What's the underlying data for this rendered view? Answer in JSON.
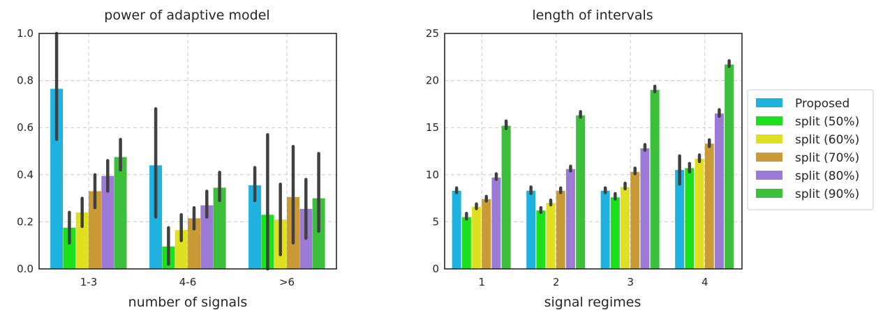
{
  "series_names": [
    "Proposed",
    "split (50%)",
    "split (60%)",
    "split (70%)",
    "split (80%)",
    "split (90%)"
  ],
  "colors": [
    "#20b2de",
    "#1de01d",
    "#e0e020",
    "#c99a35",
    "#9b7bd6",
    "#3cc03c"
  ],
  "error_bar_color": "#404040",
  "legend_placement": "right, outside, vertically centered",
  "chart_data": [
    {
      "type": "bar",
      "title": "power of adaptive model",
      "xlabel": "number of signals",
      "ylabel": "",
      "categories": [
        "1-3",
        "4-6",
        ">6"
      ],
      "ylim": [
        0,
        1.0
      ],
      "yticks": [
        0.0,
        0.2,
        0.4,
        0.6,
        0.8,
        1.0
      ],
      "ytick_labels": [
        "0.0",
        "0.2",
        "0.4",
        "0.6",
        "0.8",
        "1.0"
      ],
      "grid": true,
      "series": [
        {
          "name": "Proposed",
          "values": [
            0.765,
            0.44,
            0.355
          ],
          "ci": [
            [
              0.55,
              1.0
            ],
            [
              0.22,
              0.68
            ],
            [
              0.29,
              0.43
            ]
          ]
        },
        {
          "name": "split (50%)",
          "values": [
            0.175,
            0.095,
            0.23
          ],
          "ci": [
            [
              0.11,
              0.24
            ],
            [
              0.02,
              0.175
            ],
            [
              0.0,
              0.57
            ]
          ]
        },
        {
          "name": "split (60%)",
          "values": [
            0.24,
            0.165,
            0.21
          ],
          "ci": [
            [
              0.18,
              0.3
            ],
            [
              0.12,
              0.23
            ],
            [
              0.06,
              0.36
            ]
          ]
        },
        {
          "name": "split (70%)",
          "values": [
            0.33,
            0.215,
            0.305
          ],
          "ci": [
            [
              0.26,
              0.4
            ],
            [
              0.17,
              0.26
            ],
            [
              0.11,
              0.52
            ]
          ]
        },
        {
          "name": "split (80%)",
          "values": [
            0.395,
            0.27,
            0.255
          ],
          "ci": [
            [
              0.33,
              0.46
            ],
            [
              0.22,
              0.33
            ],
            [
              0.13,
              0.38
            ]
          ]
        },
        {
          "name": "split (90%)",
          "values": [
            0.475,
            0.345,
            0.3
          ],
          "ci": [
            [
              0.42,
              0.55
            ],
            [
              0.29,
              0.41
            ],
            [
              0.16,
              0.49
            ]
          ]
        }
      ]
    },
    {
      "type": "bar",
      "title": "length of intervals",
      "xlabel": "signal regimes",
      "ylabel": "",
      "categories": [
        "1",
        "2",
        "3",
        "4"
      ],
      "ylim": [
        0,
        25
      ],
      "yticks": [
        0,
        5,
        10,
        15,
        20,
        25
      ],
      "ytick_labels": [
        "0",
        "5",
        "10",
        "15",
        "20",
        "25"
      ],
      "grid": true,
      "series": [
        {
          "name": "Proposed",
          "values": [
            8.3,
            8.3,
            8.3,
            10.5
          ],
          "ci": [
            [
              8.1,
              8.6
            ],
            [
              8.0,
              8.7
            ],
            [
              8.1,
              8.6
            ],
            [
              9.0,
              12.0
            ]
          ]
        },
        {
          "name": "split (50%)",
          "values": [
            5.5,
            6.2,
            7.6,
            10.7
          ],
          "ci": [
            [
              5.3,
              5.9
            ],
            [
              6.0,
              6.5
            ],
            [
              7.4,
              8.0
            ],
            [
              10.3,
              11.2
            ]
          ]
        },
        {
          "name": "split (60%)",
          "values": [
            6.6,
            7.0,
            8.7,
            11.7
          ],
          "ci": [
            [
              6.4,
              6.9
            ],
            [
              6.8,
              7.3
            ],
            [
              8.5,
              9.1
            ],
            [
              11.4,
              12.1
            ]
          ]
        },
        {
          "name": "split (70%)",
          "values": [
            7.4,
            8.3,
            10.3,
            13.3
          ],
          "ci": [
            [
              7.2,
              7.7
            ],
            [
              8.1,
              8.6
            ],
            [
              10.1,
              10.7
            ],
            [
              13.0,
              13.7
            ]
          ]
        },
        {
          "name": "split (80%)",
          "values": [
            9.7,
            10.6,
            12.8,
            16.5
          ],
          "ci": [
            [
              9.5,
              10.1
            ],
            [
              10.4,
              10.9
            ],
            [
              12.6,
              13.2
            ],
            [
              16.2,
              16.9
            ]
          ]
        },
        {
          "name": "split (90%)",
          "values": [
            15.2,
            16.3,
            19.0,
            21.7
          ],
          "ci": [
            [
              14.9,
              15.7
            ],
            [
              16.1,
              16.7
            ],
            [
              18.8,
              19.4
            ],
            [
              21.5,
              22.1
            ]
          ]
        }
      ]
    }
  ]
}
